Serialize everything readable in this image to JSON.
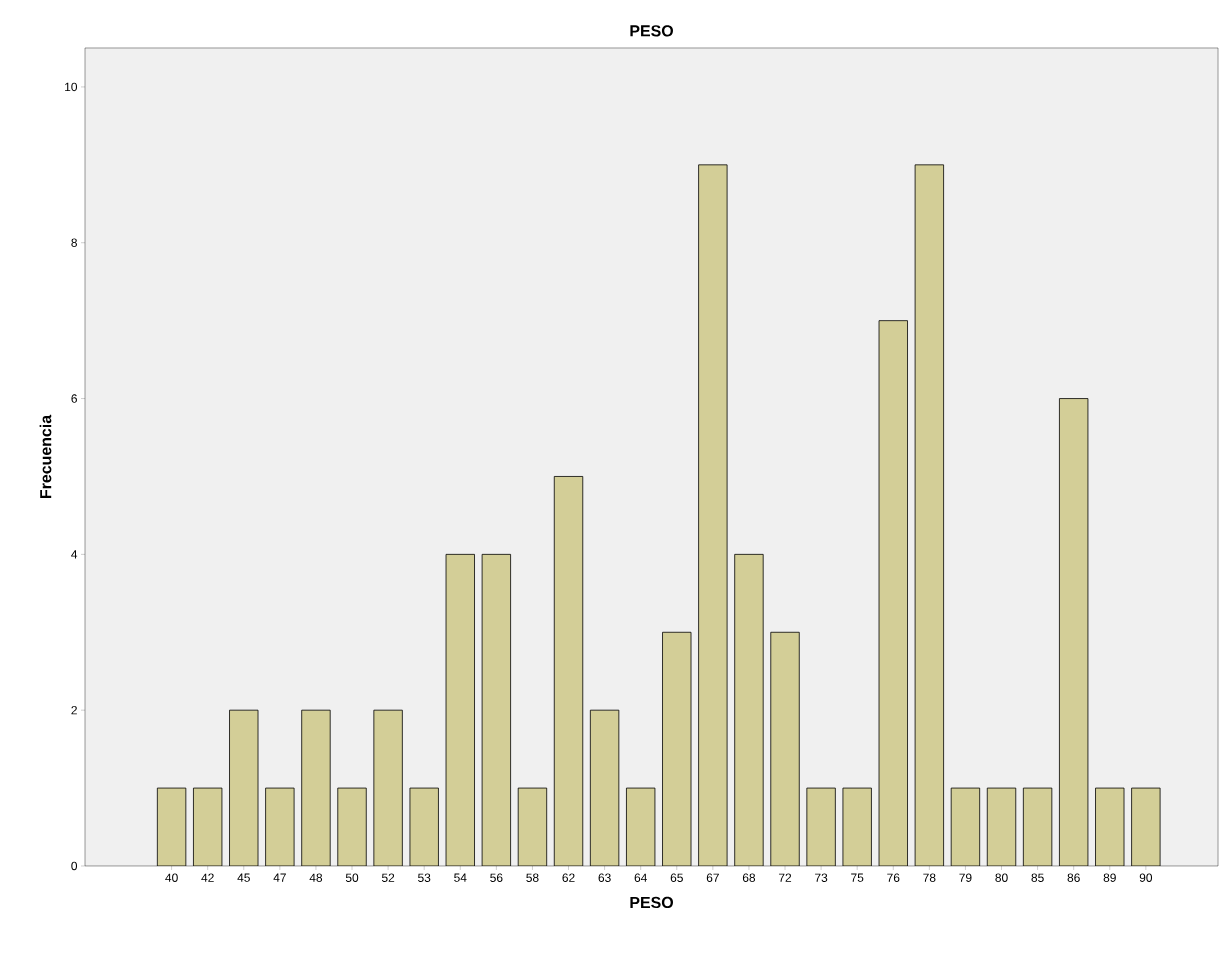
{
  "chart_data": {
    "type": "bar",
    "title": "PESO",
    "xlabel": "PESO",
    "ylabel": "Frecuencia",
    "categories": [
      "40",
      "42",
      "45",
      "47",
      "48",
      "50",
      "52",
      "53",
      "54",
      "56",
      "58",
      "62",
      "63",
      "64",
      "65",
      "67",
      "68",
      "72",
      "73",
      "75",
      "76",
      "78",
      "79",
      "80",
      "85",
      "86",
      "89",
      "90"
    ],
    "values": [
      1,
      1,
      2,
      1,
      2,
      1,
      2,
      1,
      4,
      4,
      1,
      5,
      2,
      1,
      3,
      9,
      4,
      3,
      1,
      1,
      7,
      9,
      1,
      1,
      1,
      6,
      1,
      1
    ],
    "color": "#d3ce97",
    "ylim": [
      0,
      10.5
    ],
    "yticks": [
      0,
      2,
      4,
      6,
      8,
      10
    ]
  }
}
